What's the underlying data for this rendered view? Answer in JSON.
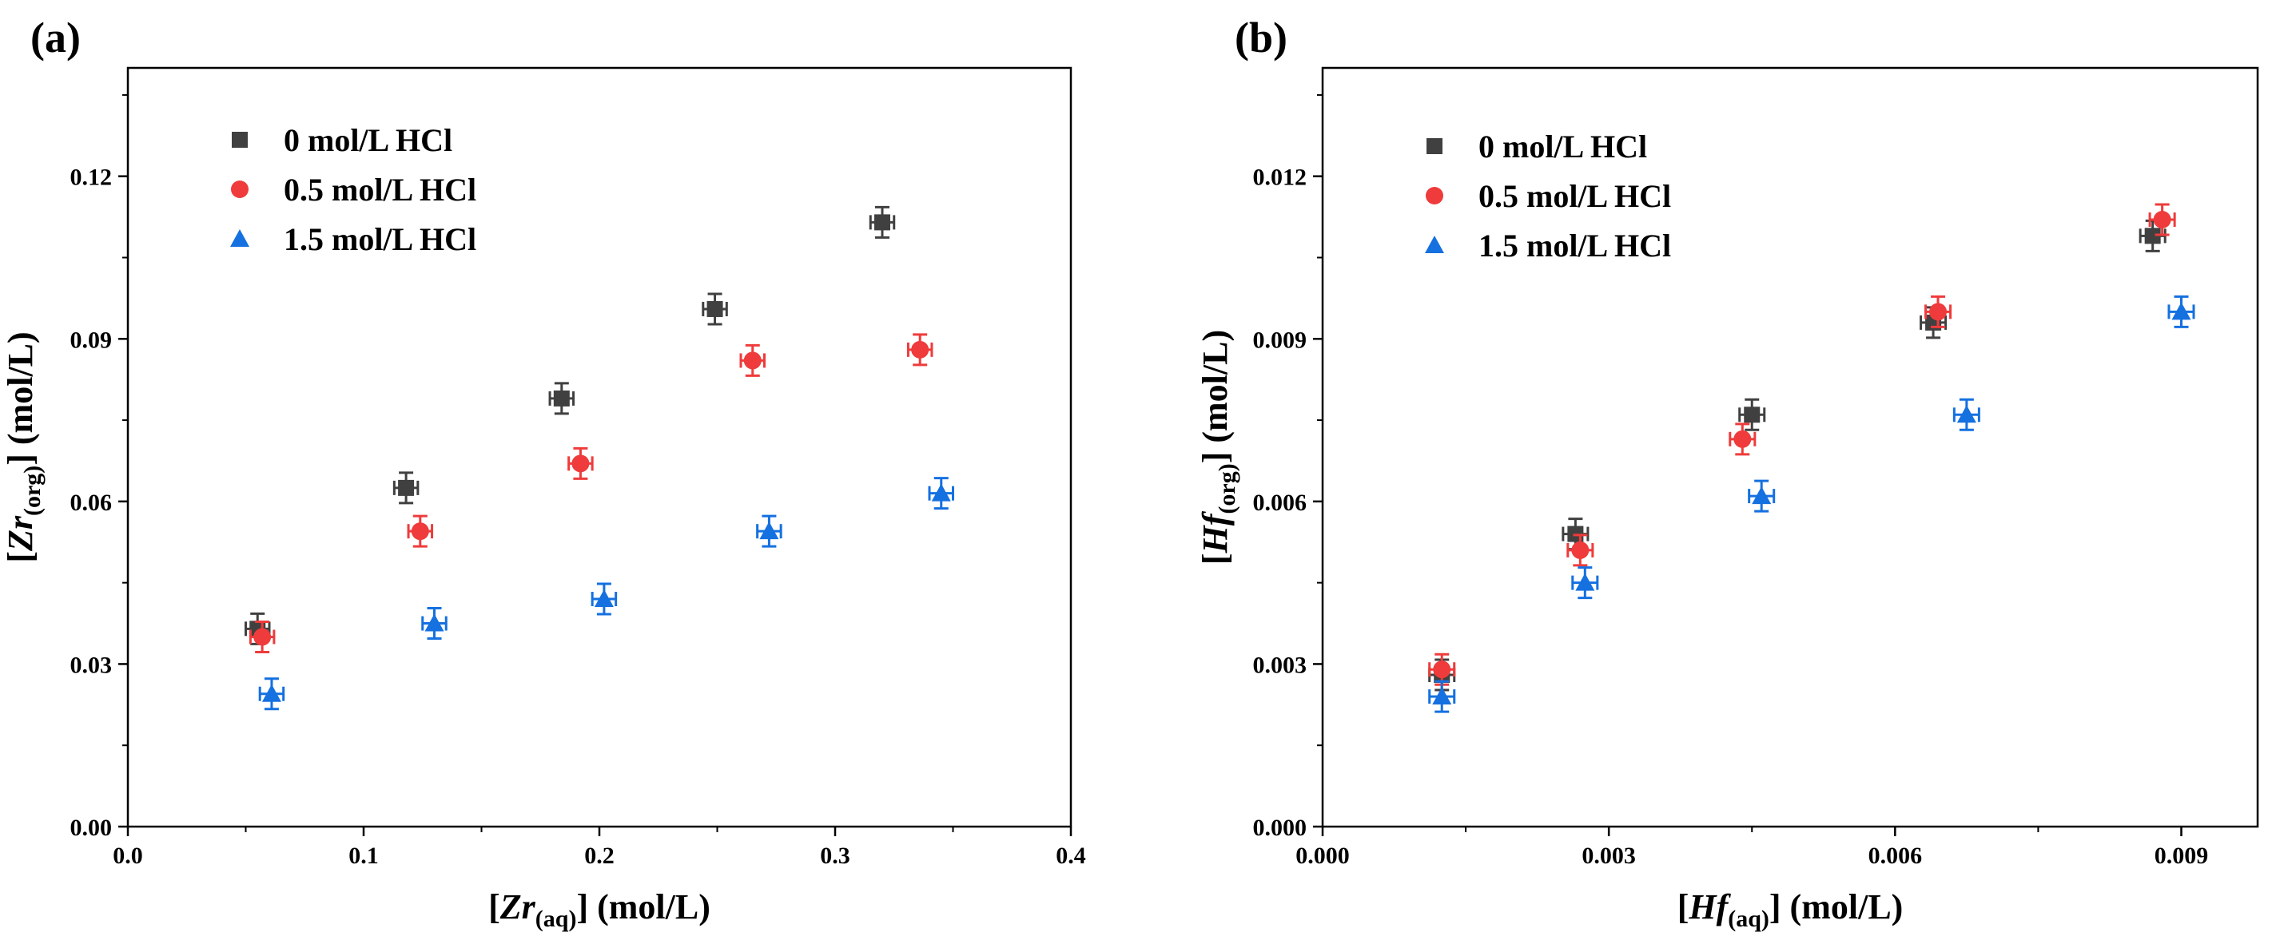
{
  "chart_data": [
    {
      "type": "scatter",
      "panel_label": "(a)",
      "xlabel": {
        "prefix": "[",
        "var": "Zr",
        "sub": "(aq)",
        "suffix": "] (mol/L)"
      },
      "ylabel": {
        "prefix": "[",
        "var": "Zr",
        "sub": "(org)",
        "suffix": "] (mol/L)"
      },
      "xlim": [
        0,
        0.4
      ],
      "ylim": [
        0,
        0.14
      ],
      "xticks": [
        0.0,
        0.1,
        0.2,
        0.3,
        0.4
      ],
      "xtick_labels": [
        "0.0",
        "0.1",
        "0.2",
        "0.3",
        "0.4"
      ],
      "yticks": [
        0.0,
        0.03,
        0.06,
        0.09,
        0.12
      ],
      "ytick_labels": [
        "0.00",
        "0.03",
        "0.06",
        "0.09",
        "0.12"
      ],
      "grid": false,
      "legend_position": "top-left",
      "x_error": 0.005,
      "y_error": 0.0028,
      "series": [
        {
          "name": "0 mol/L HCl",
          "marker": "square",
          "color": "#404040",
          "points": [
            [
              0.055,
              0.0365
            ],
            [
              0.118,
              0.0625
            ],
            [
              0.184,
              0.079
            ],
            [
              0.249,
              0.0955
            ],
            [
              0.32,
              0.1115
            ]
          ]
        },
        {
          "name": "0.5 mol/L HCl",
          "marker": "circle",
          "color": "#ef3b3b",
          "points": [
            [
              0.057,
              0.035
            ],
            [
              0.124,
              0.0545
            ],
            [
              0.192,
              0.067
            ],
            [
              0.265,
              0.086
            ],
            [
              0.336,
              0.088
            ]
          ]
        },
        {
          "name": "1.5 mol/L HCl",
          "marker": "triangle",
          "color": "#1570e0",
          "points": [
            [
              0.061,
              0.0245
            ],
            [
              0.13,
              0.0375
            ],
            [
              0.202,
              0.042
            ],
            [
              0.272,
              0.0545
            ],
            [
              0.345,
              0.0615
            ]
          ]
        }
      ]
    },
    {
      "type": "scatter",
      "panel_label": "(b)",
      "xlabel": {
        "prefix": "[",
        "var": "Hf",
        "sub": "(aq)",
        "suffix": "] (mol/L)"
      },
      "ylabel": {
        "prefix": "[",
        "var": "Hf",
        "sub": "(org)",
        "suffix": "] (mol/L)"
      },
      "xlim": [
        0,
        0.0098
      ],
      "ylim": [
        0,
        0.014
      ],
      "xticks": [
        0.0,
        0.003,
        0.006,
        0.009
      ],
      "xtick_labels": [
        "0.000",
        "0.003",
        "0.006",
        "0.009"
      ],
      "yticks": [
        0.0,
        0.003,
        0.006,
        0.009,
        0.012
      ],
      "ytick_labels": [
        "0.000",
        "0.003",
        "0.006",
        "0.009",
        "0.012"
      ],
      "grid": false,
      "legend_position": "top-left",
      "x_error": 0.00013,
      "y_error": 0.00028,
      "series": [
        {
          "name": "0 mol/L HCl",
          "marker": "square",
          "color": "#404040",
          "points": [
            [
              0.00125,
              0.0028
            ],
            [
              0.00265,
              0.0054
            ],
            [
              0.0045,
              0.0076
            ],
            [
              0.0064,
              0.0093
            ],
            [
              0.0087,
              0.0109
            ]
          ]
        },
        {
          "name": "0.5 mol/L HCl",
          "marker": "circle",
          "color": "#ef3b3b",
          "points": [
            [
              0.00125,
              0.0029
            ],
            [
              0.0027,
              0.0051
            ],
            [
              0.0044,
              0.00715
            ],
            [
              0.00645,
              0.0095
            ],
            [
              0.0088,
              0.0112
            ]
          ]
        },
        {
          "name": "1.5 mol/L HCl",
          "marker": "triangle",
          "color": "#1570e0",
          "points": [
            [
              0.00125,
              0.0024
            ],
            [
              0.00275,
              0.0045
            ],
            [
              0.0046,
              0.0061
            ],
            [
              0.00675,
              0.0076
            ],
            [
              0.009,
              0.0095
            ]
          ]
        }
      ]
    }
  ]
}
